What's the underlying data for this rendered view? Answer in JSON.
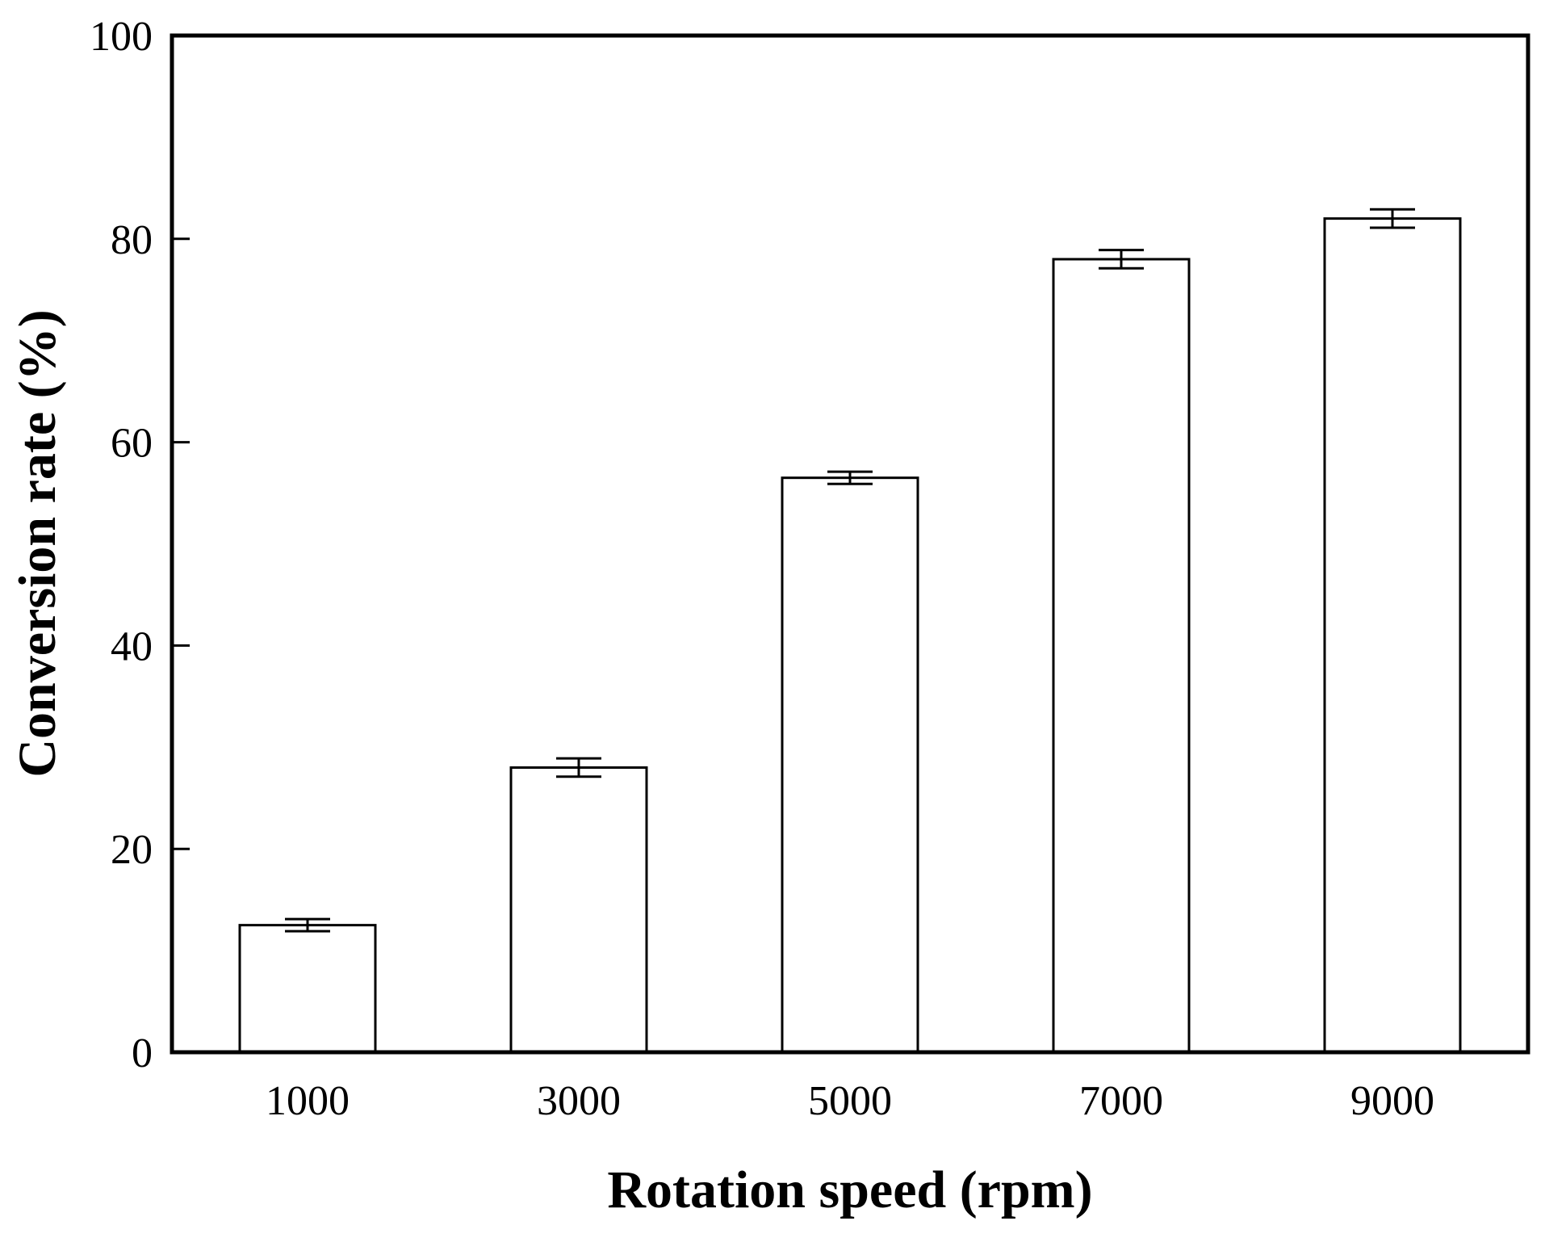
{
  "chart_data": {
    "type": "bar",
    "title": "",
    "xlabel": "Rotation speed (rpm)",
    "ylabel": "Conversion rate (%)",
    "categories": [
      "1000",
      "3000",
      "5000",
      "7000",
      "9000"
    ],
    "values": [
      12.5,
      28.0,
      56.5,
      78.0,
      82.0
    ],
    "errors": [
      0.6,
      0.9,
      0.6,
      0.9,
      0.9
    ],
    "ylim": [
      0,
      100
    ],
    "yticks": [
      "0",
      "20",
      "40",
      "60",
      "80",
      "100"
    ],
    "grid": false,
    "legend": "none",
    "bar_fill": "#ffffff",
    "bar_stroke": "#000000"
  }
}
